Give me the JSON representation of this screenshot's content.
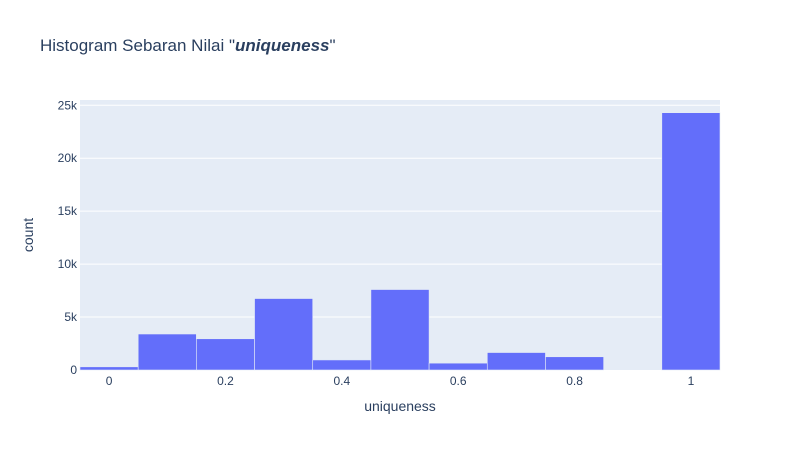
{
  "chart_data": {
    "type": "bar",
    "title_prefix": "Histogram Sebaran Nilai \"",
    "title_emphasis": "uniqueness",
    "title_suffix": "\"",
    "xlabel": "uniqueness",
    "ylabel": "count",
    "xlim": [
      -0.05,
      1.05
    ],
    "ylim": [
      0,
      25500
    ],
    "x_ticks": [
      0,
      0.2,
      0.4,
      0.6,
      0.8,
      1
    ],
    "x_tick_labels": [
      "0",
      "0.2",
      "0.4",
      "0.6",
      "0.8",
      "1"
    ],
    "y_ticks": [
      0,
      5000,
      10000,
      15000,
      20000,
      25000
    ],
    "y_tick_labels": [
      "0",
      "5k",
      "10k",
      "15k",
      "20k",
      "25k"
    ],
    "grid": true,
    "bar_color": "#636efa",
    "plot_background": "#e5ecf6",
    "bins": [
      {
        "x0": -0.05,
        "x1": 0.05,
        "count": 300
      },
      {
        "x0": 0.05,
        "x1": 0.15,
        "count": 3400
      },
      {
        "x0": 0.15,
        "x1": 0.25,
        "count": 2950
      },
      {
        "x0": 0.25,
        "x1": 0.35,
        "count": 6750
      },
      {
        "x0": 0.35,
        "x1": 0.45,
        "count": 950
      },
      {
        "x0": 0.45,
        "x1": 0.55,
        "count": 7600
      },
      {
        "x0": 0.55,
        "x1": 0.65,
        "count": 650
      },
      {
        "x0": 0.65,
        "x1": 0.75,
        "count": 1650
      },
      {
        "x0": 0.75,
        "x1": 0.85,
        "count": 1250
      },
      {
        "x0": 0.85,
        "x1": 0.95,
        "count": 0
      },
      {
        "x0": 0.95,
        "x1": 1.05,
        "count": 24300
      }
    ]
  }
}
